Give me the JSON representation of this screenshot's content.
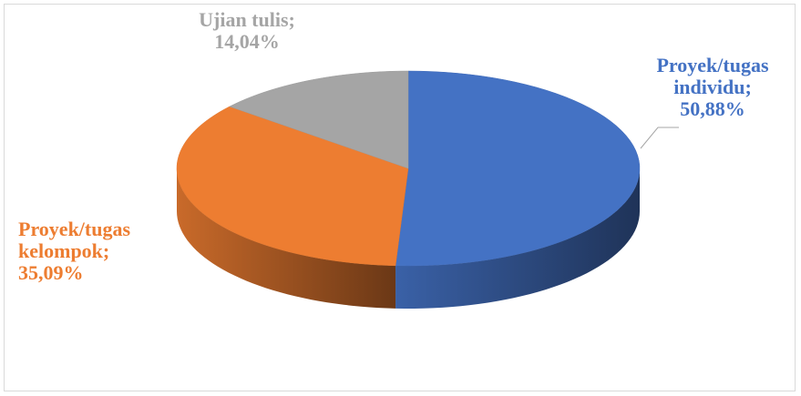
{
  "chart_data": {
    "type": "pie",
    "style": "3d",
    "title": "",
    "slices": [
      {
        "name": "Proyek/tugas individu",
        "value": 50.88,
        "color": "#4472C4",
        "label_lines": [
          "Proyek/tugas",
          "individu;",
          "50,88%"
        ]
      },
      {
        "name": "Proyek/tugas kelompok",
        "value": 35.09,
        "color": "#ED7D31",
        "label_lines": [
          "Proyek/tugas",
          "kelompok;",
          "35,09%"
        ]
      },
      {
        "name": "Ujian tulis",
        "value": 14.04,
        "color": "#A5A5A5",
        "label_lines": [
          "Ujian tulis;",
          "14,04%"
        ]
      }
    ]
  }
}
